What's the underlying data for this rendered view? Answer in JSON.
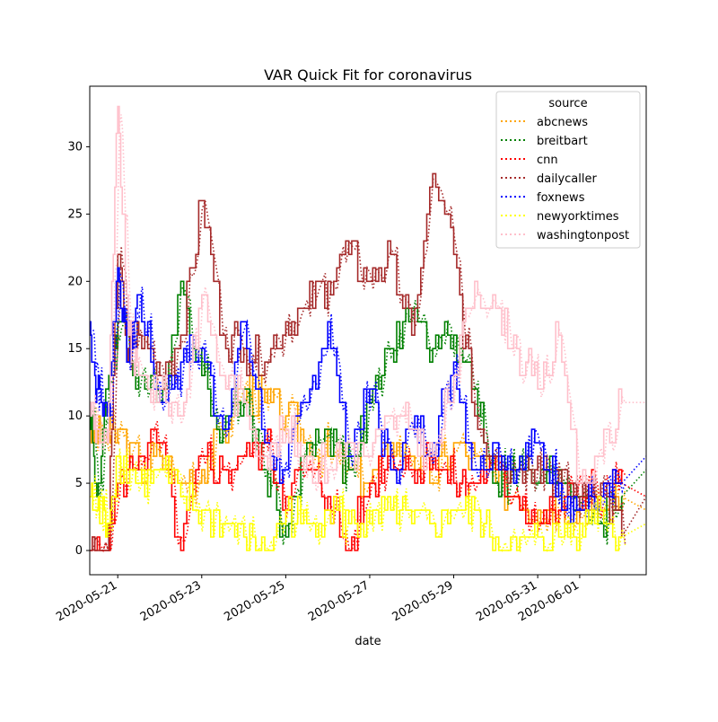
{
  "chart_data": {
    "type": "line",
    "title": "VAR Quick Fit for coronavirus",
    "xlabel": "date",
    "ylabel": "",
    "x_range": [
      "2020-05-20T08:00",
      "2020-06-02T14:00"
    ],
    "ylim": [
      -1.8,
      34.5
    ],
    "yticks": [
      0,
      5,
      10,
      15,
      20,
      25,
      30
    ],
    "xticks": [
      "2020-05-21",
      "2020-05-23",
      "2020-05-25",
      "2020-05-27",
      "2020-05-29",
      "2020-05-31",
      "2020-06-01"
    ],
    "grid": false,
    "legend": {
      "title": "source",
      "position": "top-right"
    },
    "observed_style": "solid",
    "fitted_style": "dotted",
    "series": [
      {
        "name": "abcnews",
        "color": "#ffa500",
        "points": [
          [
            "2020-05-20T08:00",
            9
          ],
          [
            "2020-05-20T14:00",
            8
          ],
          [
            "2020-05-21T00:00",
            9
          ],
          [
            "2020-05-21T12:00",
            6
          ],
          [
            "2020-05-22T00:00",
            7
          ],
          [
            "2020-05-22T12:00",
            5
          ],
          [
            "2020-05-23T00:00",
            6
          ],
          [
            "2020-05-23T12:00",
            9
          ],
          [
            "2020-05-24T00:00",
            12
          ],
          [
            "2020-05-24T12:00",
            11
          ],
          [
            "2020-05-25T00:00",
            10
          ],
          [
            "2020-05-25T12:00",
            8
          ],
          [
            "2020-05-26T00:00",
            7
          ],
          [
            "2020-05-26T12:00",
            6
          ],
          [
            "2020-05-27T00:00",
            5
          ],
          [
            "2020-05-27T12:00",
            8
          ],
          [
            "2020-05-28T00:00",
            7
          ],
          [
            "2020-05-28T12:00",
            5
          ],
          [
            "2020-05-29T00:00",
            8
          ],
          [
            "2020-05-29T12:00",
            7
          ],
          [
            "2020-05-30T00:00",
            5
          ],
          [
            "2020-05-30T12:00",
            4
          ],
          [
            "2020-05-31T00:00",
            3
          ],
          [
            "2020-05-31T12:00",
            4
          ],
          [
            "2020-06-01T00:00",
            3
          ],
          [
            "2020-06-01T12:00",
            3
          ],
          [
            "2020-06-02T00:00",
            4
          ]
        ],
        "forecast": [
          [
            "2020-06-02T00:00",
            4
          ],
          [
            "2020-06-02T14:00",
            3
          ]
        ]
      },
      {
        "name": "breitbart",
        "color": "#008000",
        "points": [
          [
            "2020-05-20T08:00",
            11
          ],
          [
            "2020-05-20T12:00",
            4
          ],
          [
            "2020-05-20T18:00",
            12
          ],
          [
            "2020-05-21T00:00",
            17
          ],
          [
            "2020-05-21T12:00",
            13
          ],
          [
            "2020-05-22T00:00",
            11
          ],
          [
            "2020-05-22T12:00",
            20
          ],
          [
            "2020-05-23T00:00",
            13
          ],
          [
            "2020-05-23T12:00",
            9
          ],
          [
            "2020-05-24T00:00",
            12
          ],
          [
            "2020-05-24T12:00",
            6
          ],
          [
            "2020-05-25T00:00",
            1
          ],
          [
            "2020-05-25T12:00",
            8
          ],
          [
            "2020-05-26T00:00",
            9
          ],
          [
            "2020-05-26T12:00",
            6
          ],
          [
            "2020-05-27T00:00",
            11
          ],
          [
            "2020-05-27T12:00",
            15
          ],
          [
            "2020-05-28T00:00",
            18
          ],
          [
            "2020-05-28T12:00",
            15
          ],
          [
            "2020-05-29T00:00",
            16
          ],
          [
            "2020-05-29T12:00",
            12
          ],
          [
            "2020-05-30T00:00",
            5
          ],
          [
            "2020-05-30T12:00",
            6
          ],
          [
            "2020-05-31T00:00",
            5
          ],
          [
            "2020-05-31T12:00",
            6
          ],
          [
            "2020-06-01T00:00",
            4
          ],
          [
            "2020-06-01T12:00",
            2
          ],
          [
            "2020-06-02T00:00",
            4
          ]
        ],
        "forecast": [
          [
            "2020-06-02T00:00",
            4
          ],
          [
            "2020-06-02T14:00",
            6
          ]
        ]
      },
      {
        "name": "cnn",
        "color": "#ff0000",
        "points": [
          [
            "2020-05-20T08:00",
            0
          ],
          [
            "2020-05-20T18:00",
            0
          ],
          [
            "2020-05-21T00:00",
            5
          ],
          [
            "2020-05-21T12:00",
            7
          ],
          [
            "2020-05-22T00:00",
            8
          ],
          [
            "2020-05-22T12:00",
            0
          ],
          [
            "2020-05-23T00:00",
            7
          ],
          [
            "2020-05-23T12:00",
            6
          ],
          [
            "2020-05-24T00:00",
            7
          ],
          [
            "2020-05-24T12:00",
            8
          ],
          [
            "2020-05-25T00:00",
            4
          ],
          [
            "2020-05-25T12:00",
            6
          ],
          [
            "2020-05-26T00:00",
            4
          ],
          [
            "2020-05-26T12:00",
            0
          ],
          [
            "2020-05-27T00:00",
            5
          ],
          [
            "2020-05-27T12:00",
            7
          ],
          [
            "2020-05-28T00:00",
            6
          ],
          [
            "2020-05-28T12:00",
            7
          ],
          [
            "2020-05-29T00:00",
            5
          ],
          [
            "2020-05-29T12:00",
            5
          ],
          [
            "2020-05-30T00:00",
            6
          ],
          [
            "2020-05-30T12:00",
            4
          ],
          [
            "2020-05-31T00:00",
            2
          ],
          [
            "2020-05-31T12:00",
            3
          ],
          [
            "2020-06-01T00:00",
            5
          ],
          [
            "2020-06-01T12:00",
            4
          ],
          [
            "2020-06-02T00:00",
            5
          ]
        ],
        "forecast": [
          [
            "2020-06-02T00:00",
            5
          ],
          [
            "2020-06-02T14:00",
            4
          ]
        ]
      },
      {
        "name": "dailycaller",
        "color": "#a52a2a",
        "points": [
          [
            "2020-05-20T08:00",
            0
          ],
          [
            "2020-05-20T18:00",
            0
          ],
          [
            "2020-05-21T00:00",
            22
          ],
          [
            "2020-05-21T06:00",
            14
          ],
          [
            "2020-05-21T12:00",
            16
          ],
          [
            "2020-05-22T00:00",
            13
          ],
          [
            "2020-05-22T12:00",
            16
          ],
          [
            "2020-05-23T00:00",
            26
          ],
          [
            "2020-05-23T12:00",
            16
          ],
          [
            "2020-05-24T00:00",
            15
          ],
          [
            "2020-05-24T12:00",
            14
          ],
          [
            "2020-05-25T00:00",
            17
          ],
          [
            "2020-05-25T12:00",
            18
          ],
          [
            "2020-05-26T00:00",
            20
          ],
          [
            "2020-05-26T12:00",
            22
          ],
          [
            "2020-05-27T00:00",
            20
          ],
          [
            "2020-05-27T12:00",
            22
          ],
          [
            "2020-05-28T00:00",
            16
          ],
          [
            "2020-05-28T12:00",
            28
          ],
          [
            "2020-05-29T00:00",
            22
          ],
          [
            "2020-05-29T12:00",
            10
          ],
          [
            "2020-05-30T00:00",
            7
          ],
          [
            "2020-05-30T12:00",
            6
          ],
          [
            "2020-05-31T00:00",
            7
          ],
          [
            "2020-05-31T12:00",
            5
          ],
          [
            "2020-06-01T00:00",
            4
          ],
          [
            "2020-06-01T12:00",
            5
          ],
          [
            "2020-06-02T00:00",
            1
          ]
        ],
        "forecast": [
          [
            "2020-06-02T00:00",
            1
          ],
          [
            "2020-06-02T14:00",
            4
          ]
        ]
      },
      {
        "name": "foxnews",
        "color": "#0000ff",
        "points": [
          [
            "2020-05-20T08:00",
            17
          ],
          [
            "2020-05-20T12:00",
            12
          ],
          [
            "2020-05-20T18:00",
            10
          ],
          [
            "2020-05-21T00:00",
            21
          ],
          [
            "2020-05-21T06:00",
            14
          ],
          [
            "2020-05-21T12:00",
            19
          ],
          [
            "2020-05-22T00:00",
            11
          ],
          [
            "2020-05-22T12:00",
            14
          ],
          [
            "2020-05-23T00:00",
            15
          ],
          [
            "2020-05-23T12:00",
            9
          ],
          [
            "2020-05-24T00:00",
            17
          ],
          [
            "2020-05-24T12:00",
            8
          ],
          [
            "2020-05-25T00:00",
            6
          ],
          [
            "2020-05-25T12:00",
            11
          ],
          [
            "2020-05-26T00:00",
            17
          ],
          [
            "2020-05-26T12:00",
            7
          ],
          [
            "2020-05-27T00:00",
            12
          ],
          [
            "2020-05-27T12:00",
            6
          ],
          [
            "2020-05-28T00:00",
            9
          ],
          [
            "2020-05-28T12:00",
            8
          ],
          [
            "2020-05-29T00:00",
            14
          ],
          [
            "2020-05-29T12:00",
            6
          ],
          [
            "2020-05-30T00:00",
            8
          ],
          [
            "2020-05-30T12:00",
            6
          ],
          [
            "2020-05-31T00:00",
            8
          ],
          [
            "2020-05-31T12:00",
            5
          ],
          [
            "2020-06-01T00:00",
            3
          ],
          [
            "2020-06-01T12:00",
            4
          ],
          [
            "2020-06-02T00:00",
            5
          ]
        ],
        "forecast": [
          [
            "2020-06-02T00:00",
            5
          ],
          [
            "2020-06-02T14:00",
            7
          ]
        ]
      },
      {
        "name": "newyorktimes",
        "color": "#ffff00",
        "points": [
          [
            "2020-05-20T08:00",
            4
          ],
          [
            "2020-05-20T12:00",
            3
          ],
          [
            "2020-05-20T18:00",
            2
          ],
          [
            "2020-05-21T00:00",
            7
          ],
          [
            "2020-05-21T12:00",
            5
          ],
          [
            "2020-05-22T00:00",
            6
          ],
          [
            "2020-05-22T12:00",
            4
          ],
          [
            "2020-05-23T00:00",
            3
          ],
          [
            "2020-05-23T12:00",
            2
          ],
          [
            "2020-05-24T00:00",
            1
          ],
          [
            "2020-05-24T12:00",
            0
          ],
          [
            "2020-05-25T00:00",
            3
          ],
          [
            "2020-05-25T12:00",
            2
          ],
          [
            "2020-05-26T00:00",
            3
          ],
          [
            "2020-05-26T12:00",
            2
          ],
          [
            "2020-05-27T00:00",
            2
          ],
          [
            "2020-05-27T12:00",
            3
          ],
          [
            "2020-05-28T00:00",
            2
          ],
          [
            "2020-05-28T12:00",
            2
          ],
          [
            "2020-05-29T00:00",
            3
          ],
          [
            "2020-05-29T12:00",
            3
          ],
          [
            "2020-05-30T00:00",
            1
          ],
          [
            "2020-05-30T12:00",
            0
          ],
          [
            "2020-05-31T00:00",
            1
          ],
          [
            "2020-05-31T12:00",
            1
          ],
          [
            "2020-06-01T00:00",
            2
          ],
          [
            "2020-06-01T12:00",
            3
          ],
          [
            "2020-06-02T00:00",
            1
          ]
        ],
        "forecast": [
          [
            "2020-06-02T00:00",
            1
          ],
          [
            "2020-06-02T14:00",
            2
          ]
        ]
      },
      {
        "name": "washingtonpost",
        "color": "#ffc0cb",
        "points": [
          [
            "2020-05-20T08:00",
            11
          ],
          [
            "2020-05-20T12:00",
            9
          ],
          [
            "2020-05-20T18:00",
            8
          ],
          [
            "2020-05-21T00:00",
            33
          ],
          [
            "2020-05-21T06:00",
            16
          ],
          [
            "2020-05-21T12:00",
            13
          ],
          [
            "2020-05-22T00:00",
            12
          ],
          [
            "2020-05-22T12:00",
            10
          ],
          [
            "2020-05-23T00:00",
            19
          ],
          [
            "2020-05-23T12:00",
            13
          ],
          [
            "2020-05-24T00:00",
            11
          ],
          [
            "2020-05-24T12:00",
            7
          ],
          [
            "2020-05-25T00:00",
            9
          ],
          [
            "2020-05-25T12:00",
            7
          ],
          [
            "2020-05-26T00:00",
            6
          ],
          [
            "2020-05-26T12:00",
            8
          ],
          [
            "2020-05-27T00:00",
            7
          ],
          [
            "2020-05-27T12:00",
            10
          ],
          [
            "2020-05-28T00:00",
            9
          ],
          [
            "2020-05-28T12:00",
            7
          ],
          [
            "2020-05-29T00:00",
            13
          ],
          [
            "2020-05-29T12:00",
            20
          ],
          [
            "2020-05-30T00:00",
            18
          ],
          [
            "2020-05-30T12:00",
            15
          ],
          [
            "2020-05-31T00:00",
            12
          ],
          [
            "2020-05-31T12:00",
            16
          ],
          [
            "2020-06-01T00:00",
            5
          ],
          [
            "2020-06-01T12:00",
            7
          ],
          [
            "2020-06-02T00:00",
            11
          ]
        ],
        "forecast": [
          [
            "2020-06-02T00:00",
            11
          ],
          [
            "2020-06-02T14:00",
            11
          ]
        ]
      }
    ]
  }
}
